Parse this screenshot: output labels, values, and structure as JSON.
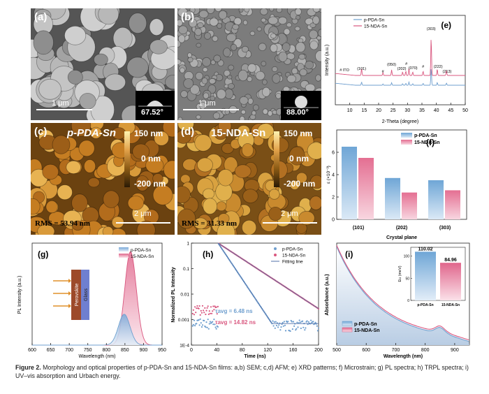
{
  "panels": {
    "a": {
      "label": "(a)",
      "scale": "1 μm",
      "angle": "67.52°"
    },
    "b": {
      "label": "(b)",
      "scale": "1 μm",
      "angle": "88.00°"
    },
    "c": {
      "label": "(c)",
      "title": "p-PDA-Sn",
      "bar_top": "150 nm",
      "bar_mid": "0 nm",
      "bar_bot": "-200 nm",
      "rms": "RMS = 53.94 nm",
      "scale": "2 μm"
    },
    "d": {
      "label": "(d)",
      "title": "15-NDA-Sn",
      "bar_top": "150 nm",
      "bar_mid": "0 nm",
      "bar_bot": "-200 nm",
      "rms": "RMS = 31.33 nm",
      "scale": "2 μm"
    }
  },
  "caption": {
    "lead": "Figure 2.",
    "text": "Morphology and optical properties of p-PDA-Sn and 15-NDA-Sn films: a,b) SEM; c,d) AFM; e) XRD patterns; f) Microstrain; g) PL spectra; h) TRPL spectra; i) UV–vis absorption and Urbach energy."
  },
  "colors": {
    "blue": "#6f9fcf",
    "pink": "#d9577f",
    "blue_fill": "#a9c8e6",
    "pink_fill": "#f0b2c4"
  },
  "chart_data": [
    {
      "id": "e",
      "panel_label": "(e)",
      "type": "line",
      "xlabel": "2-Theta (degree)",
      "ylabel": "Intensity (a.u.)",
      "xlim": [
        5,
        50
      ],
      "xticks": [
        10,
        15,
        20,
        25,
        30,
        35,
        40,
        45,
        50
      ],
      "series": [
        {
          "name": "p-PDA-Sn"
        },
        {
          "name": "15-NDA-Sn"
        }
      ],
      "annotations": [
        "# ITO",
        "(101)",
        "#",
        "(050)",
        "(202)",
        "#",
        "(070)",
        "#",
        "(303)",
        "(222)",
        "(213)"
      ],
      "peaks_deg": [
        14.1,
        21.5,
        24.5,
        28.3,
        29.4,
        30.5,
        31.8,
        35.4,
        38.2,
        40.3,
        43.5
      ]
    },
    {
      "id": "f",
      "panel_label": "(f)",
      "type": "bar",
      "xlabel": "Crystal plane",
      "ylabel": "ε (×10⁻³)",
      "categories": [
        "(101)",
        "(202)",
        "(303)"
      ],
      "ylim": [
        0,
        8
      ],
      "yticks": [
        0,
        2,
        4,
        6
      ],
      "series": [
        {
          "name": "p-PDA-Sn",
          "values": [
            6.5,
            3.7,
            3.5
          ]
        },
        {
          "name": "15-NDA-Sn",
          "values": [
            5.5,
            2.4,
            2.6
          ]
        }
      ]
    },
    {
      "id": "g",
      "panel_label": "(g)",
      "type": "area",
      "xlabel": "Wavelength (nm)",
      "ylabel": "PL Intensity (a.u.)",
      "xlim": [
        600,
        950
      ],
      "xticks": [
        600,
        650,
        700,
        750,
        800,
        850,
        900,
        950
      ],
      "series": [
        {
          "name": "p-PDA-Sn",
          "peak_nm": 848,
          "relative_height": 0.33
        },
        {
          "name": "15-NDA-Sn",
          "peak_nm": 865,
          "relative_height": 1.0
        }
      ],
      "inset_labels": [
        "Perovskite",
        "Glass"
      ]
    },
    {
      "id": "h",
      "panel_label": "(h)",
      "type": "scatter",
      "xlabel": "Time (ns)",
      "ylabel": "Normalized PL Intensity",
      "xlim": [
        0,
        200
      ],
      "xticks": [
        0,
        40,
        80,
        120,
        160,
        200
      ],
      "yscale": "log",
      "ylim": [
        0.0001,
        1
      ],
      "yticks": [
        "1E-4",
        "0.001",
        "0.01",
        "0.1",
        "1"
      ],
      "series": [
        {
          "name": "p-PDA-Sn",
          "tau_ns": 6.48
        },
        {
          "name": "15-NDA-Sn",
          "tau_ns": 14.82
        },
        {
          "name": "Fitting line"
        }
      ],
      "annotations": [
        "τavg = 6.48 ns",
        "τavg = 14.82 ns"
      ]
    },
    {
      "id": "i",
      "panel_label": "(i)",
      "type": "line",
      "xlabel": "Wavelength (nm)",
      "ylabel": "Absorbance (a.u.)",
      "xlim": [
        500,
        950
      ],
      "xticks": [
        500,
        600,
        700,
        800,
        900
      ],
      "series": [
        {
          "name": "p-PDA-Sn"
        },
        {
          "name": "15-NDA-Sn"
        }
      ],
      "inset": {
        "type": "bar",
        "ylabel": "Eu (meV)",
        "categories": [
          "p-PDA-Sn",
          "15-NDA-Sn"
        ],
        "values": [
          110.02,
          84.96
        ],
        "labels": [
          "110.02",
          "84.96"
        ],
        "ylim": [
          0,
          120
        ],
        "yticks": [
          0,
          50,
          100
        ]
      }
    }
  ]
}
